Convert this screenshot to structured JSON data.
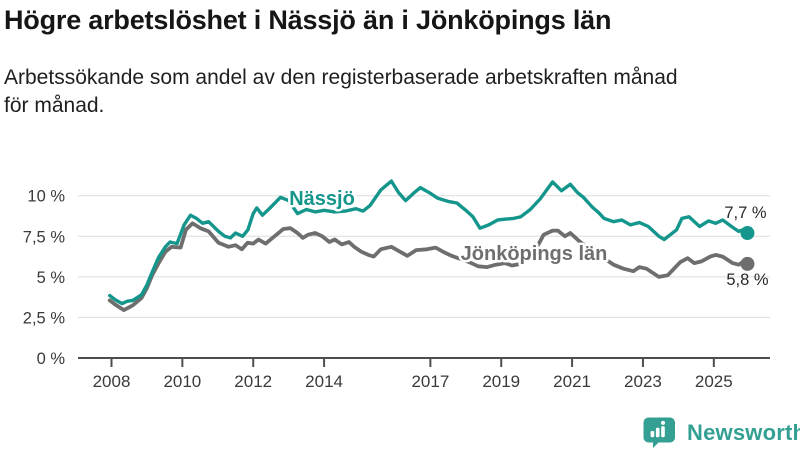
{
  "header": {
    "title": "Högre arbetslöshet i Nässjö än i Jönköpings län",
    "subtitle": "Arbetssökande som andel av den registerbaserade arbetskraften månad för månad.",
    "subtitle_line1": "Arbetssökande som andel av den registerbaserade arbetskraften månad",
    "subtitle_line2": "för månad."
  },
  "footer": {
    "brand": "Newsworthy",
    "logo_icon": "newsworthy-speech-bubble-bar-chart-icon",
    "brand_color": "#33a093"
  },
  "chart_data": {
    "type": "line",
    "unit": "%",
    "grid": true,
    "grid_color": "#dcdcdc",
    "axis_color": "#4d4d4d",
    "text_color": "#3a3a3a",
    "x_axis": {
      "ticks": [
        2008,
        2010,
        2012,
        2014,
        2017,
        2019,
        2021,
        2023,
        2025
      ],
      "tick_labels": [
        "2008",
        "2010",
        "2012",
        "2014",
        "2017",
        "2019",
        "2021",
        "2023",
        "2025"
      ],
      "range": [
        2007.9,
        2026.2
      ]
    },
    "y_axis": {
      "ticks": [
        0,
        2.5,
        5,
        7.5,
        10
      ],
      "tick_labels": [
        "0 %",
        "2,5 %",
        "5 %",
        "7,5 %",
        "10 %"
      ],
      "range": [
        0,
        11.5
      ]
    },
    "series": [
      {
        "name": "Nässjö",
        "color": "#14968c",
        "end_value": 7.7,
        "end_label": "7,7 %",
        "points": [
          [
            2007.95,
            3.85
          ],
          [
            2008.1,
            3.6
          ],
          [
            2008.3,
            3.35
          ],
          [
            2008.45,
            3.5
          ],
          [
            2008.6,
            3.55
          ],
          [
            2008.85,
            3.9
          ],
          [
            2009.0,
            4.5
          ],
          [
            2009.15,
            5.3
          ],
          [
            2009.33,
            6.2
          ],
          [
            2009.52,
            6.85
          ],
          [
            2009.65,
            7.15
          ],
          [
            2009.85,
            7.05
          ],
          [
            2010.05,
            8.2
          ],
          [
            2010.23,
            8.8
          ],
          [
            2010.4,
            8.6
          ],
          [
            2010.57,
            8.3
          ],
          [
            2010.74,
            8.4
          ],
          [
            2011.02,
            7.8
          ],
          [
            2011.2,
            7.5
          ],
          [
            2011.36,
            7.4
          ],
          [
            2011.5,
            7.7
          ],
          [
            2011.7,
            7.5
          ],
          [
            2011.85,
            7.9
          ],
          [
            2012.0,
            8.9
          ],
          [
            2012.1,
            9.25
          ],
          [
            2012.26,
            8.8
          ],
          [
            2012.5,
            9.3
          ],
          [
            2012.77,
            9.9
          ],
          [
            2013.0,
            9.7
          ],
          [
            2013.25,
            8.9
          ],
          [
            2013.5,
            9.15
          ],
          [
            2013.75,
            9.0
          ],
          [
            2014.0,
            9.1
          ],
          [
            2014.3,
            9.0
          ],
          [
            2014.6,
            9.05
          ],
          [
            2014.9,
            9.2
          ],
          [
            2015.1,
            9.05
          ],
          [
            2015.3,
            9.4
          ],
          [
            2015.6,
            10.35
          ],
          [
            2015.9,
            10.9
          ],
          [
            2016.1,
            10.2
          ],
          [
            2016.3,
            9.7
          ],
          [
            2016.55,
            10.2
          ],
          [
            2016.72,
            10.5
          ],
          [
            2017.0,
            10.15
          ],
          [
            2017.2,
            9.85
          ],
          [
            2017.5,
            9.65
          ],
          [
            2017.75,
            9.55
          ],
          [
            2018.0,
            9.1
          ],
          [
            2018.2,
            8.7
          ],
          [
            2018.4,
            8.0
          ],
          [
            2018.65,
            8.2
          ],
          [
            2018.9,
            8.5
          ],
          [
            2019.1,
            8.55
          ],
          [
            2019.35,
            8.6
          ],
          [
            2019.55,
            8.7
          ],
          [
            2019.82,
            9.15
          ],
          [
            2020.1,
            9.8
          ],
          [
            2020.45,
            10.85
          ],
          [
            2020.7,
            10.3
          ],
          [
            2020.95,
            10.7
          ],
          [
            2021.15,
            10.2
          ],
          [
            2021.32,
            9.9
          ],
          [
            2021.57,
            9.3
          ],
          [
            2021.75,
            8.95
          ],
          [
            2021.9,
            8.6
          ],
          [
            2022.17,
            8.4
          ],
          [
            2022.4,
            8.5
          ],
          [
            2022.65,
            8.2
          ],
          [
            2022.9,
            8.35
          ],
          [
            2023.15,
            8.1
          ],
          [
            2023.45,
            7.5
          ],
          [
            2023.6,
            7.3
          ],
          [
            2023.95,
            7.9
          ],
          [
            2024.1,
            8.6
          ],
          [
            2024.3,
            8.7
          ],
          [
            2024.6,
            8.1
          ],
          [
            2024.85,
            8.45
          ],
          [
            2025.05,
            8.3
          ],
          [
            2025.25,
            8.5
          ],
          [
            2025.5,
            8.1
          ],
          [
            2025.7,
            7.8
          ],
          [
            2025.82,
            7.9
          ],
          [
            2025.95,
            7.7
          ]
        ]
      },
      {
        "name": "Jönköpings län",
        "color": "#6e6e6e",
        "end_value": 5.8,
        "end_label": "5,8 %",
        "points": [
          [
            2007.95,
            3.55
          ],
          [
            2008.1,
            3.3
          ],
          [
            2008.35,
            2.95
          ],
          [
            2008.6,
            3.25
          ],
          [
            2008.85,
            3.7
          ],
          [
            2009.0,
            4.3
          ],
          [
            2009.15,
            5.1
          ],
          [
            2009.33,
            5.85
          ],
          [
            2009.52,
            6.55
          ],
          [
            2009.7,
            6.85
          ],
          [
            2009.95,
            6.8
          ],
          [
            2010.1,
            7.9
          ],
          [
            2010.29,
            8.3
          ],
          [
            2010.51,
            8.0
          ],
          [
            2010.74,
            7.8
          ],
          [
            2011.02,
            7.1
          ],
          [
            2011.3,
            6.85
          ],
          [
            2011.5,
            6.95
          ],
          [
            2011.68,
            6.7
          ],
          [
            2011.84,
            7.1
          ],
          [
            2012.0,
            7.05
          ],
          [
            2012.15,
            7.3
          ],
          [
            2012.35,
            7.05
          ],
          [
            2012.6,
            7.5
          ],
          [
            2012.85,
            7.95
          ],
          [
            2013.05,
            8.0
          ],
          [
            2013.25,
            7.7
          ],
          [
            2013.4,
            7.4
          ],
          [
            2013.55,
            7.6
          ],
          [
            2013.75,
            7.7
          ],
          [
            2013.95,
            7.5
          ],
          [
            2014.15,
            7.15
          ],
          [
            2014.3,
            7.3
          ],
          [
            2014.5,
            7.0
          ],
          [
            2014.7,
            7.15
          ],
          [
            2014.85,
            6.85
          ],
          [
            2015.05,
            6.55
          ],
          [
            2015.25,
            6.35
          ],
          [
            2015.4,
            6.25
          ],
          [
            2015.6,
            6.7
          ],
          [
            2015.9,
            6.85
          ],
          [
            2016.1,
            6.6
          ],
          [
            2016.35,
            6.3
          ],
          [
            2016.6,
            6.65
          ],
          [
            2016.9,
            6.7
          ],
          [
            2017.15,
            6.8
          ],
          [
            2017.4,
            6.5
          ],
          [
            2017.6,
            6.3
          ],
          [
            2017.85,
            6.1
          ],
          [
            2018.1,
            5.9
          ],
          [
            2018.35,
            5.65
          ],
          [
            2018.6,
            5.6
          ],
          [
            2018.85,
            5.75
          ],
          [
            2019.1,
            5.85
          ],
          [
            2019.3,
            5.7
          ],
          [
            2019.55,
            5.8
          ],
          [
            2019.8,
            6.2
          ],
          [
            2020.0,
            6.8
          ],
          [
            2020.2,
            7.6
          ],
          [
            2020.45,
            7.85
          ],
          [
            2020.6,
            7.85
          ],
          [
            2020.8,
            7.5
          ],
          [
            2020.95,
            7.7
          ],
          [
            2021.2,
            7.2
          ],
          [
            2021.5,
            6.7
          ],
          [
            2021.75,
            6.3
          ],
          [
            2022.0,
            6.0
          ],
          [
            2022.17,
            5.75
          ],
          [
            2022.45,
            5.5
          ],
          [
            2022.73,
            5.35
          ],
          [
            2022.9,
            5.6
          ],
          [
            2023.1,
            5.5
          ],
          [
            2023.45,
            5.0
          ],
          [
            2023.7,
            5.1
          ],
          [
            2024.05,
            5.9
          ],
          [
            2024.26,
            6.15
          ],
          [
            2024.45,
            5.85
          ],
          [
            2024.65,
            5.95
          ],
          [
            2024.9,
            6.25
          ],
          [
            2025.05,
            6.35
          ],
          [
            2025.25,
            6.25
          ],
          [
            2025.53,
            5.85
          ],
          [
            2025.7,
            5.75
          ],
          [
            2025.85,
            5.95
          ],
          [
            2025.95,
            5.8
          ]
        ]
      }
    ]
  }
}
